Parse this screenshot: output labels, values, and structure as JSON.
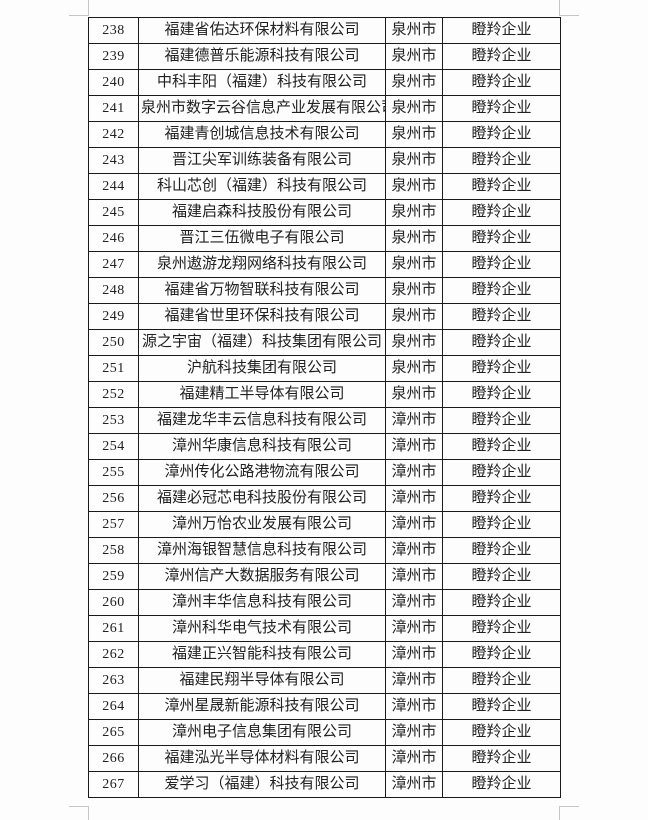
{
  "page": {
    "colors": {
      "background": "#fdfdfd",
      "table_border": "#1a1a1a",
      "text": "#212121",
      "margin_mark": "#c6c6c6"
    }
  },
  "table": {
    "columns": [
      "no",
      "company",
      "city",
      "category"
    ],
    "rows": [
      {
        "no": "238",
        "company": "福建省佑达环保材料有限公司",
        "city": "泉州市",
        "category": "瞪羚企业"
      },
      {
        "no": "239",
        "company": "福建德普乐能源科技有限公司",
        "city": "泉州市",
        "category": "瞪羚企业"
      },
      {
        "no": "240",
        "company": "中科丰阳（福建）科技有限公司",
        "city": "泉州市",
        "category": "瞪羚企业"
      },
      {
        "no": "241",
        "company": "泉州市数字云谷信息产业发展有限公司",
        "city": "泉州市",
        "category": "瞪羚企业"
      },
      {
        "no": "242",
        "company": "福建青创城信息技术有限公司",
        "city": "泉州市",
        "category": "瞪羚企业"
      },
      {
        "no": "243",
        "company": "晋江尖军训练装备有限公司",
        "city": "泉州市",
        "category": "瞪羚企业"
      },
      {
        "no": "244",
        "company": "科山芯创（福建）科技有限公司",
        "city": "泉州市",
        "category": "瞪羚企业"
      },
      {
        "no": "245",
        "company": "福建启森科技股份有限公司",
        "city": "泉州市",
        "category": "瞪羚企业"
      },
      {
        "no": "246",
        "company": "晋江三伍微电子有限公司",
        "city": "泉州市",
        "category": "瞪羚企业"
      },
      {
        "no": "247",
        "company": "泉州遨游龙翔网络科技有限公司",
        "city": "泉州市",
        "category": "瞪羚企业"
      },
      {
        "no": "248",
        "company": "福建省万物智联科技有限公司",
        "city": "泉州市",
        "category": "瞪羚企业"
      },
      {
        "no": "249",
        "company": "福建省世里环保科技有限公司",
        "city": "泉州市",
        "category": "瞪羚企业"
      },
      {
        "no": "250",
        "company": "源之宇宙（福建）科技集团有限公司",
        "city": "泉州市",
        "category": "瞪羚企业"
      },
      {
        "no": "251",
        "company": "沪航科技集团有限公司",
        "city": "泉州市",
        "category": "瞪羚企业"
      },
      {
        "no": "252",
        "company": "福建精工半导体有限公司",
        "city": "泉州市",
        "category": "瞪羚企业"
      },
      {
        "no": "253",
        "company": "福建龙华丰云信息科技有限公司",
        "city": "漳州市",
        "category": "瞪羚企业"
      },
      {
        "no": "254",
        "company": "漳州华康信息科技有限公司",
        "city": "漳州市",
        "category": "瞪羚企业"
      },
      {
        "no": "255",
        "company": "漳州传化公路港物流有限公司",
        "city": "漳州市",
        "category": "瞪羚企业"
      },
      {
        "no": "256",
        "company": "福建必冠芯电科技股份有限公司",
        "city": "漳州市",
        "category": "瞪羚企业"
      },
      {
        "no": "257",
        "company": "漳州万怡农业发展有限公司",
        "city": "漳州市",
        "category": "瞪羚企业"
      },
      {
        "no": "258",
        "company": "漳州海银智慧信息科技有限公司",
        "city": "漳州市",
        "category": "瞪羚企业"
      },
      {
        "no": "259",
        "company": "漳州信产大数据服务有限公司",
        "city": "漳州市",
        "category": "瞪羚企业"
      },
      {
        "no": "260",
        "company": "漳州丰华信息科技有限公司",
        "city": "漳州市",
        "category": "瞪羚企业"
      },
      {
        "no": "261",
        "company": "漳州科华电气技术有限公司",
        "city": "漳州市",
        "category": "瞪羚企业"
      },
      {
        "no": "262",
        "company": "福建正兴智能科技有限公司",
        "city": "漳州市",
        "category": "瞪羚企业"
      },
      {
        "no": "263",
        "company": "福建民翔半导体有限公司",
        "city": "漳州市",
        "category": "瞪羚企业"
      },
      {
        "no": "264",
        "company": "漳州星晟新能源科技有限公司",
        "city": "漳州市",
        "category": "瞪羚企业"
      },
      {
        "no": "265",
        "company": "漳州电子信息集团有限公司",
        "city": "漳州市",
        "category": "瞪羚企业"
      },
      {
        "no": "266",
        "company": "福建泓光半导体材料有限公司",
        "city": "漳州市",
        "category": "瞪羚企业"
      },
      {
        "no": "267",
        "company": "爱学习（福建）科技有限公司",
        "city": "漳州市",
        "category": "瞪羚企业"
      }
    ]
  }
}
